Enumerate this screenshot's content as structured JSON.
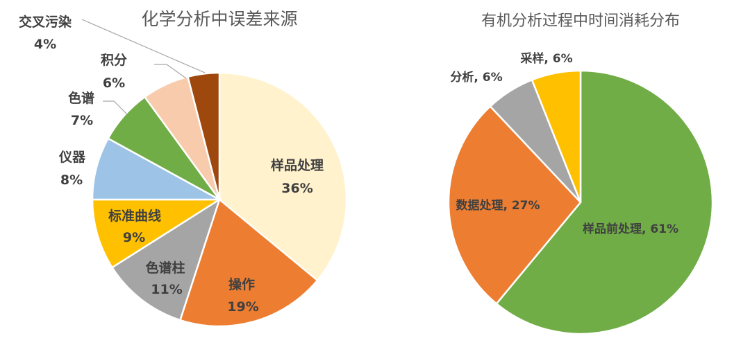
{
  "chart_data": [
    {
      "type": "pie",
      "title": "化学分析中误差来源",
      "categories": [
        "样品处理",
        "操作",
        "色谱柱",
        "标准曲线",
        "仪器",
        "色谱",
        "积分",
        "交叉污染"
      ],
      "values": [
        36,
        19,
        11,
        9,
        8,
        7,
        6,
        4
      ],
      "value_labels": [
        "36%",
        "19%",
        "11%",
        "9%",
        "8%",
        "7%",
        "6%",
        "4%"
      ],
      "colors": [
        "#FFF2CC",
        "#ED7D31",
        "#A5A5A5",
        "#FFC000",
        "#9DC3E6",
        "#70AD47",
        "#F8CBAD",
        "#9E480E"
      ],
      "start_angle_deg": 0,
      "direction": "clockwise",
      "legend": "none",
      "label_style": "category name above percentage"
    },
    {
      "type": "pie",
      "title": "有机分析过程中时间消耗分布",
      "categories": [
        "样品前处理",
        "数据处理",
        "分析",
        "采样"
      ],
      "values": [
        61,
        27,
        6,
        6
      ],
      "value_labels": [
        "61%",
        "27%",
        "6%",
        "6%"
      ],
      "colors": [
        "#70AD47",
        "#ED7D31",
        "#A5A5A5",
        "#FFC000"
      ],
      "start_angle_deg": 0,
      "direction": "clockwise",
      "legend": "none",
      "label_style": "category, percentage"
    }
  ],
  "left": {
    "title": "化学分析中误差来源",
    "labels": [
      {
        "name": "样品处理",
        "pct": "36%"
      },
      {
        "name": "操作",
        "pct": "19%"
      },
      {
        "name": "色谱柱",
        "pct": "11%"
      },
      {
        "name": "标准曲线",
        "pct": "9%"
      },
      {
        "name": "仪器",
        "pct": "8%"
      },
      {
        "name": "色谱",
        "pct": "7%"
      },
      {
        "name": "积分",
        "pct": "6%"
      },
      {
        "name": "交叉污染",
        "pct": "4%"
      }
    ]
  },
  "right": {
    "title": "有机分析过程中时间消耗分布",
    "labels": [
      {
        "text": "样品前处理, 61%"
      },
      {
        "text": "数据处理, 27%"
      },
      {
        "text": "分析, 6%"
      },
      {
        "text": "采样, 6%"
      }
    ]
  }
}
